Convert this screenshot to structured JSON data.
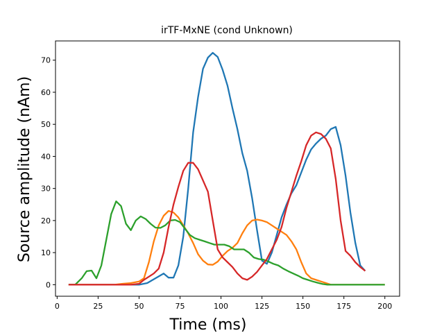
{
  "chart_data": {
    "type": "line",
    "title": "irTF-MxNE (cond Unknown)",
    "xlabel": "Time (ms)",
    "ylabel": "Source amplitude (nAm)",
    "xlim": [
      -1,
      209
    ],
    "ylim": [
      -3.6,
      76
    ],
    "xticks": [
      0,
      25,
      50,
      75,
      100,
      125,
      150,
      175,
      200
    ],
    "yticks": [
      0,
      10,
      20,
      30,
      40,
      50,
      60,
      70
    ],
    "grid": false,
    "legend": "none",
    "series": [
      {
        "color": "#1f77b4",
        "points": [
          [
            7,
            0
          ],
          [
            10,
            0
          ],
          [
            15,
            0
          ],
          [
            20,
            0
          ],
          [
            25,
            0
          ],
          [
            30,
            0
          ],
          [
            35,
            0
          ],
          [
            40,
            0
          ],
          [
            45,
            0
          ],
          [
            50,
            0
          ],
          [
            55,
            0.5
          ],
          [
            60,
            2
          ],
          [
            65,
            3.5
          ],
          [
            68,
            2.2
          ],
          [
            71,
            2.2
          ],
          [
            74,
            6
          ],
          [
            77,
            15
          ],
          [
            80,
            30
          ],
          [
            83,
            47.5
          ],
          [
            86,
            58.5
          ],
          [
            89,
            67.3
          ],
          [
            92,
            70.8
          ],
          [
            95,
            72.3
          ],
          [
            98,
            71
          ],
          [
            101,
            67
          ],
          [
            104,
            62
          ],
          [
            107,
            55
          ],
          [
            110,
            48.5
          ],
          [
            113,
            41
          ],
          [
            116,
            35.5
          ],
          [
            119,
            27
          ],
          [
            122,
            17
          ],
          [
            125,
            7.5
          ],
          [
            128,
            6.5
          ],
          [
            131,
            10
          ],
          [
            134,
            15.5
          ],
          [
            137,
            21
          ],
          [
            140,
            25
          ],
          [
            143,
            28.5
          ],
          [
            146,
            31
          ],
          [
            149,
            35
          ],
          [
            152,
            39
          ],
          [
            155,
            42.2
          ],
          [
            158,
            44
          ],
          [
            161,
            45.5
          ],
          [
            164,
            46.5
          ],
          [
            167,
            48.5
          ],
          [
            170,
            49.2
          ],
          [
            173,
            43.5
          ],
          [
            176,
            34
          ],
          [
            179,
            22.5
          ],
          [
            182,
            13
          ],
          [
            185,
            6
          ],
          [
            188,
            4.3
          ]
        ]
      },
      {
        "color": "#ff7f0e",
        "points": [
          [
            7,
            0
          ],
          [
            15,
            0
          ],
          [
            25,
            0
          ],
          [
            35,
            0
          ],
          [
            40,
            0.3
          ],
          [
            45,
            0.5
          ],
          [
            50,
            1
          ],
          [
            53,
            2
          ],
          [
            56,
            7
          ],
          [
            59,
            13.5
          ],
          [
            62,
            18.5
          ],
          [
            65,
            21.5
          ],
          [
            68,
            23
          ],
          [
            71,
            22.5
          ],
          [
            74,
            21
          ],
          [
            77,
            18.5
          ],
          [
            80,
            16
          ],
          [
            83,
            13
          ],
          [
            86,
            9.5
          ],
          [
            89,
            7.5
          ],
          [
            92,
            6.3
          ],
          [
            95,
            6.2
          ],
          [
            98,
            7.2
          ],
          [
            101,
            9
          ],
          [
            104,
            10.5
          ],
          [
            107,
            11.5
          ],
          [
            110,
            13
          ],
          [
            113,
            16
          ],
          [
            116,
            18.5
          ],
          [
            119,
            20
          ],
          [
            122,
            20.3
          ],
          [
            125,
            20
          ],
          [
            128,
            19.5
          ],
          [
            131,
            18.5
          ],
          [
            134,
            17.5
          ],
          [
            137,
            16.5
          ],
          [
            140,
            15.5
          ],
          [
            143,
            13.5
          ],
          [
            146,
            11
          ],
          [
            149,
            7
          ],
          [
            152,
            3.5
          ],
          [
            155,
            2
          ],
          [
            158,
            1.5
          ],
          [
            161,
            1
          ],
          [
            164,
            0.5
          ],
          [
            167,
            0
          ],
          [
            170,
            0
          ],
          [
            175,
            0
          ],
          [
            180,
            0
          ],
          [
            185,
            0
          ],
          [
            190,
            0
          ],
          [
            200,
            0
          ]
        ]
      },
      {
        "color": "#2ca02c",
        "points": [
          [
            7,
            0
          ],
          [
            11,
            0
          ],
          [
            15,
            2
          ],
          [
            18,
            4.2
          ],
          [
            21,
            4.4
          ],
          [
            24,
            2
          ],
          [
            27,
            6
          ],
          [
            30,
            14
          ],
          [
            33,
            22
          ],
          [
            36,
            26
          ],
          [
            39,
            24.5
          ],
          [
            42,
            19
          ],
          [
            45,
            17
          ],
          [
            48,
            20
          ],
          [
            51,
            21.3
          ],
          [
            54,
            20.5
          ],
          [
            57,
            19
          ],
          [
            60,
            17.8
          ],
          [
            63,
            17.7
          ],
          [
            66,
            18.5
          ],
          [
            69,
            20
          ],
          [
            72,
            20.2
          ],
          [
            75,
            19.5
          ],
          [
            78,
            17.5
          ],
          [
            81,
            15.5
          ],
          [
            84,
            14.5
          ],
          [
            87,
            14
          ],
          [
            90,
            13.5
          ],
          [
            93,
            13
          ],
          [
            96,
            12.5
          ],
          [
            99,
            12.5
          ],
          [
            102,
            12.5
          ],
          [
            105,
            12
          ],
          [
            108,
            11
          ],
          [
            111,
            11
          ],
          [
            114,
            11
          ],
          [
            117,
            10
          ],
          [
            120,
            8.5
          ],
          [
            123,
            8
          ],
          [
            126,
            7.8
          ],
          [
            129,
            7.2
          ],
          [
            132,
            6.5
          ],
          [
            135,
            6
          ],
          [
            138,
            5
          ],
          [
            141,
            4.2
          ],
          [
            144,
            3.5
          ],
          [
            147,
            2.8
          ],
          [
            150,
            2
          ],
          [
            153,
            1.5
          ],
          [
            156,
            1
          ],
          [
            159,
            0.6
          ],
          [
            162,
            0.2
          ],
          [
            165,
            0
          ],
          [
            170,
            0
          ],
          [
            180,
            0
          ],
          [
            190,
            0
          ],
          [
            200,
            0
          ]
        ]
      },
      {
        "color": "#d62728",
        "points": [
          [
            7,
            0
          ],
          [
            15,
            0
          ],
          [
            25,
            0
          ],
          [
            35,
            0
          ],
          [
            45,
            0
          ],
          [
            50,
            0.3
          ],
          [
            53,
            1.5
          ],
          [
            56,
            2.5
          ],
          [
            59,
            3.5
          ],
          [
            62,
            5
          ],
          [
            65,
            10
          ],
          [
            68,
            18
          ],
          [
            71,
            25
          ],
          [
            74,
            30.5
          ],
          [
            77,
            35.5
          ],
          [
            80,
            38
          ],
          [
            83,
            38
          ],
          [
            86,
            36
          ],
          [
            89,
            32.5
          ],
          [
            92,
            29
          ],
          [
            95,
            20
          ],
          [
            98,
            11
          ],
          [
            101,
            8.5
          ],
          [
            104,
            7
          ],
          [
            107,
            5.5
          ],
          [
            110,
            3.5
          ],
          [
            113,
            2
          ],
          [
            116,
            1.5
          ],
          [
            119,
            2.5
          ],
          [
            122,
            4
          ],
          [
            125,
            6
          ],
          [
            128,
            8
          ],
          [
            131,
            11
          ],
          [
            134,
            14
          ],
          [
            137,
            18
          ],
          [
            140,
            24
          ],
          [
            143,
            29
          ],
          [
            146,
            34
          ],
          [
            149,
            38.5
          ],
          [
            152,
            43.5
          ],
          [
            155,
            46.5
          ],
          [
            158,
            47.5
          ],
          [
            161,
            47
          ],
          [
            164,
            45.5
          ],
          [
            167,
            42.5
          ],
          [
            170,
            33
          ],
          [
            173,
            20
          ],
          [
            176,
            10.5
          ],
          [
            179,
            9
          ],
          [
            182,
            7
          ],
          [
            185,
            5.5
          ],
          [
            188,
            4.3
          ]
        ]
      }
    ]
  }
}
